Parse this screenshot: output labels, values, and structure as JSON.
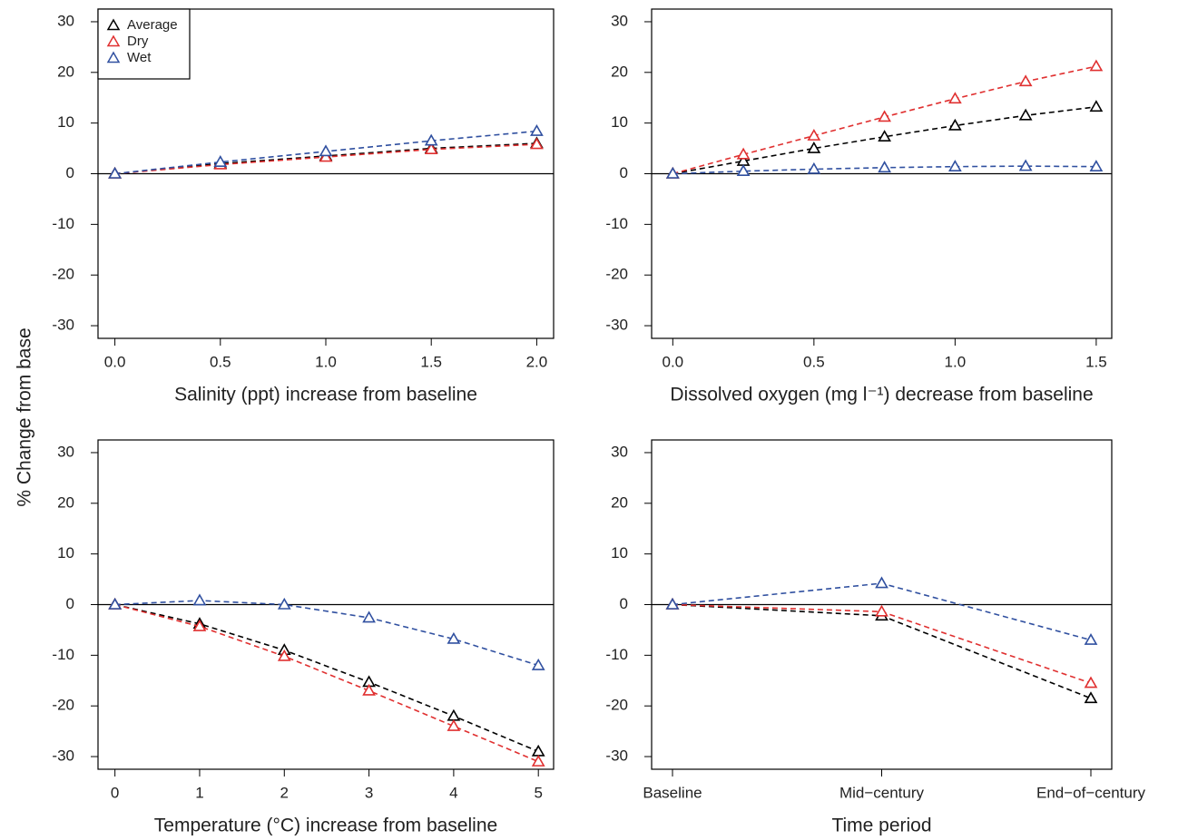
{
  "y_label": "% Change from base",
  "chart_data": [
    {
      "type": "line",
      "x_label": "Salinity (ppt) increase from baseline",
      "x": [
        0,
        0.5,
        1,
        1.5,
        2
      ],
      "xlim": [
        -0.08,
        2.08
      ],
      "xticks": [
        {
          "value": 0,
          "label": "0.0"
        },
        {
          "value": 0.5,
          "label": "0.5"
        },
        {
          "value": 1,
          "label": "1.0"
        },
        {
          "value": 1.5,
          "label": "1.5"
        },
        {
          "value": 2,
          "label": "2.0"
        }
      ],
      "ylim": [
        -32.5,
        32.5
      ],
      "yticks": [
        -30,
        -20,
        -10,
        0,
        10,
        20,
        30
      ],
      "hline": 0,
      "legend": "top-left",
      "series": [
        {
          "name": "Average",
          "color": "#000000",
          "values": [
            0,
            2,
            3.5,
            5,
            6
          ]
        },
        {
          "name": "Dry",
          "color": "#e03030",
          "values": [
            0,
            1.8,
            3.3,
            4.8,
            5.8
          ]
        },
        {
          "name": "Wet",
          "color": "#3050a0",
          "values": [
            0,
            2.3,
            4.4,
            6.5,
            8.4
          ]
        }
      ]
    },
    {
      "type": "line",
      "x_label": "Dissolved oxygen (mg l⁻¹) decrease from baseline",
      "x": [
        0,
        0.25,
        0.5,
        0.75,
        1,
        1.25,
        1.5
      ],
      "xlim": [
        -0.075,
        1.555
      ],
      "xticks": [
        {
          "value": 0,
          "label": "0.0"
        },
        {
          "value": 0.5,
          "label": "0.5"
        },
        {
          "value": 1,
          "label": "1.0"
        },
        {
          "value": 1.5,
          "label": "1.5"
        }
      ],
      "ylim": [
        -32.5,
        32.5
      ],
      "yticks": [
        -30,
        -20,
        -10,
        0,
        10,
        20,
        30
      ],
      "hline": 0,
      "series": [
        {
          "name": "Average",
          "color": "#000000",
          "values": [
            0,
            2.5,
            5,
            7.3,
            9.5,
            11.5,
            13.2
          ]
        },
        {
          "name": "Dry",
          "color": "#e03030",
          "values": [
            0,
            3.8,
            7.5,
            11.2,
            14.8,
            18.2,
            21.2
          ]
        },
        {
          "name": "Wet",
          "color": "#3050a0",
          "values": [
            0,
            0.5,
            0.9,
            1.2,
            1.4,
            1.5,
            1.4
          ]
        }
      ]
    },
    {
      "type": "line",
      "x_label": "Temperature (°C) increase from baseline",
      "x": [
        0,
        1,
        2,
        3,
        4,
        5
      ],
      "xlim": [
        -0.2,
        5.18
      ],
      "xticks": [
        0,
        1,
        2,
        3,
        4,
        5
      ],
      "ylim": [
        -32.5,
        32.5
      ],
      "yticks": [
        -30,
        -20,
        -10,
        0,
        10,
        20,
        30
      ],
      "hline": 0,
      "series": [
        {
          "name": "Average",
          "color": "#000000",
          "values": [
            0,
            -3.8,
            -9,
            -15.3,
            -22,
            -29
          ]
        },
        {
          "name": "Dry",
          "color": "#e03030",
          "values": [
            0,
            -4.3,
            -10.2,
            -17,
            -24,
            -31
          ]
        },
        {
          "name": "Wet",
          "color": "#3050a0",
          "values": [
            0,
            0.8,
            0,
            -2.6,
            -6.8,
            -12
          ]
        }
      ]
    },
    {
      "type": "line",
      "x_label": "Time period",
      "categories": [
        "Baseline",
        "Mid−century",
        "End−of−century"
      ],
      "ylim": [
        -32.5,
        32.5
      ],
      "yticks": [
        -30,
        -20,
        -10,
        0,
        10,
        20,
        30
      ],
      "hline": 0,
      "series": [
        {
          "name": "Average",
          "color": "#000000",
          "values": [
            0,
            -2.2,
            -18.5
          ]
        },
        {
          "name": "Dry",
          "color": "#e03030",
          "values": [
            0,
            -1.4,
            -15.5
          ]
        },
        {
          "name": "Wet",
          "color": "#3050a0",
          "values": [
            0,
            4.2,
            -7
          ]
        }
      ]
    }
  ]
}
